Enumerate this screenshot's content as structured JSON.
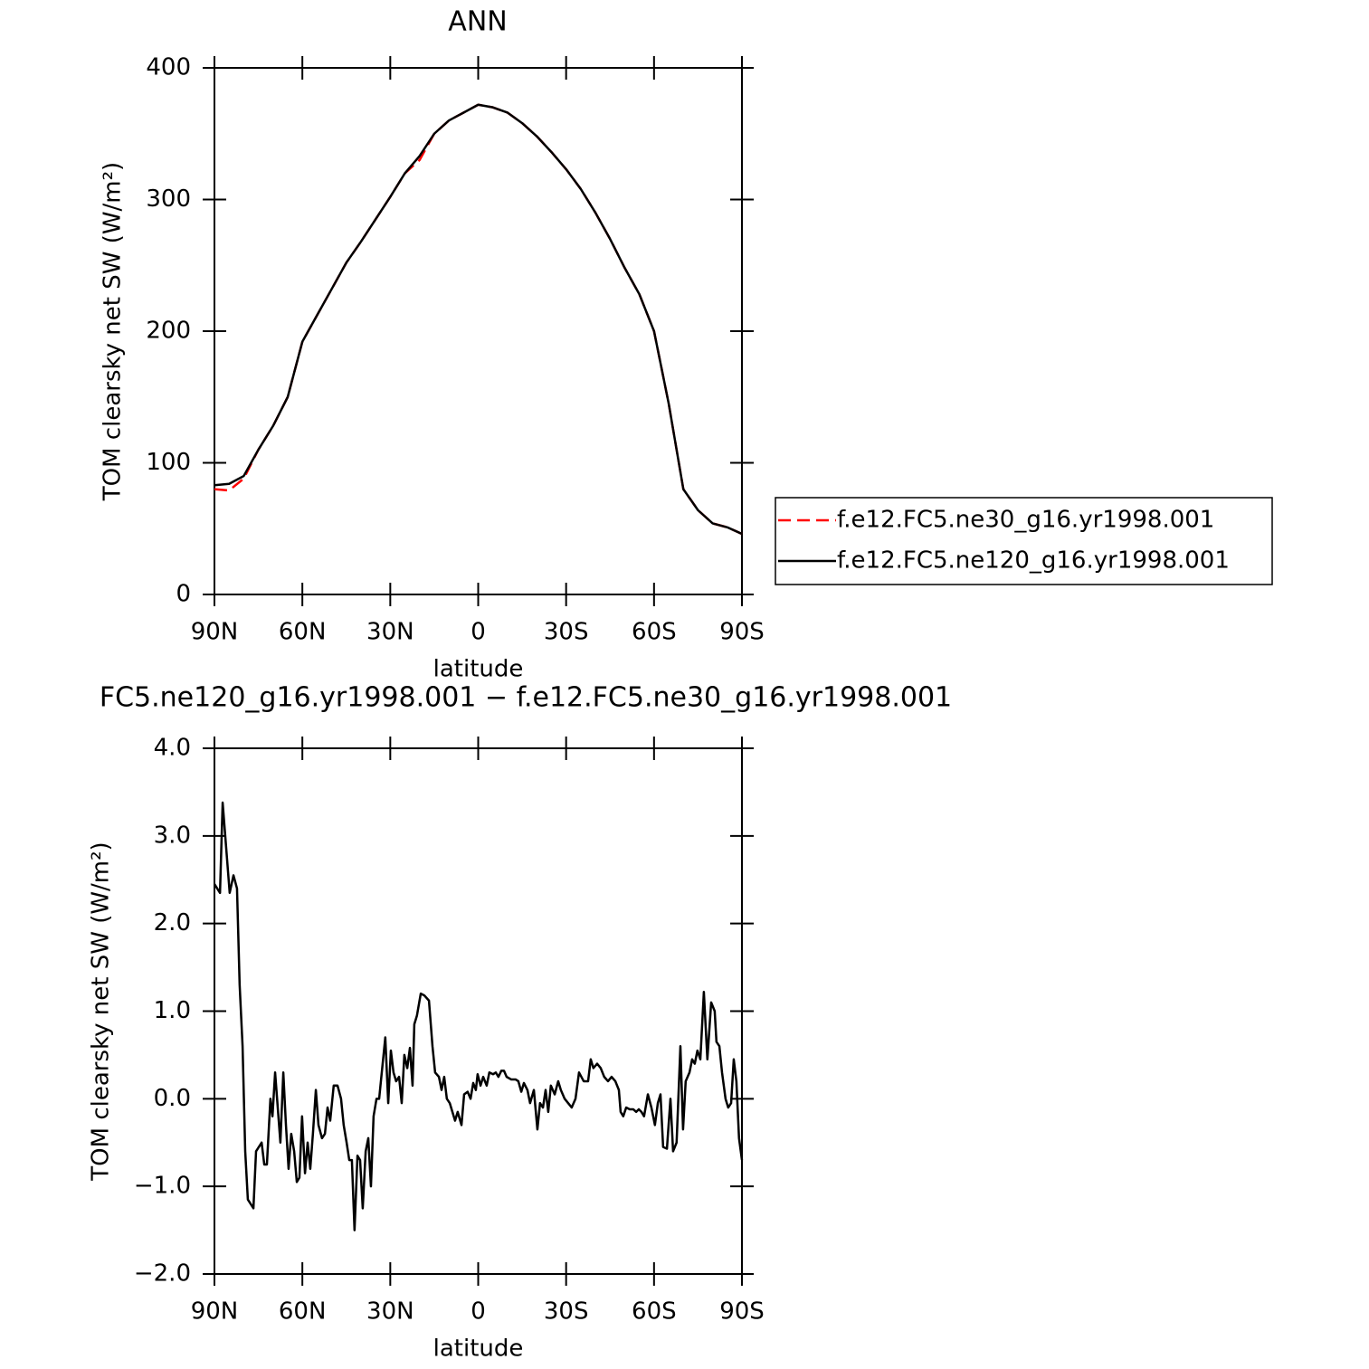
{
  "chart_data": [
    {
      "type": "line",
      "title": "ANN",
      "x_label": "latitude",
      "y_label": "TOM clearsky net SW (W/m²)",
      "x": [
        90,
        85,
        80,
        75,
        70,
        65,
        60,
        55,
        50,
        45,
        40,
        35,
        30,
        25,
        20,
        15,
        10,
        5,
        0,
        -5,
        -10,
        -15,
        -20,
        -25,
        -30,
        -35,
        -40,
        -45,
        -50,
        -55,
        -60,
        -65,
        -70,
        -75,
        -80,
        -85,
        -90
      ],
      "series": [
        {
          "name": "f.e12.FC5.ne30_g16.yr1998.001",
          "color": "#ff0000",
          "dash": "dashed",
          "values": [
            80,
            79,
            88,
            110,
            128,
            150,
            192,
            212,
            232,
            252,
            268,
            285,
            302,
            320,
            330,
            350,
            360,
            366,
            372,
            370,
            366,
            358,
            348,
            336,
            323,
            308,
            290,
            270,
            248,
            228,
            200,
            145,
            80,
            64,
            54,
            51,
            46
          ]
        },
        {
          "name": "f.e12.FC5.ne120_g16.yr1998.001",
          "color": "#000000",
          "dash": "solid",
          "values": [
            83,
            84,
            90,
            110,
            128,
            150,
            192,
            212,
            232,
            252,
            268,
            285,
            302,
            320,
            333,
            350,
            360,
            366,
            372,
            370,
            366,
            358,
            348,
            336,
            323,
            308,
            290,
            270,
            248,
            228,
            200,
            145,
            80,
            64,
            54,
            51,
            46
          ]
        }
      ],
      "xlim": [
        90,
        -90
      ],
      "xticks": [
        {
          "value": 90,
          "label": "90N"
        },
        {
          "value": 60,
          "label": "60N"
        },
        {
          "value": 30,
          "label": "30N"
        },
        0,
        {
          "value": -30,
          "label": "30S"
        },
        {
          "value": -60,
          "label": "60S"
        },
        {
          "value": -90,
          "label": "90S"
        }
      ],
      "ylim": [
        0,
        400
      ],
      "yticks": [
        0,
        100,
        200,
        300,
        400
      ],
      "legend": "right"
    },
    {
      "type": "line",
      "title": "FC5.ne120_g16.yr1998.001 − f.e12.FC5.ne30_g16.yr1998.001",
      "x_label": "latitude",
      "y_label": "TOM clearsky net SW (W/m²)",
      "x": [
        90.0,
        88.1,
        87.2,
        84.8,
        83.5,
        82.3,
        81.4,
        80.4,
        79.5,
        78.6,
        76.7,
        75.8,
        73.9,
        73.0,
        72.1,
        70.9,
        70.2,
        69.3,
        67.5,
        66.5,
        65.6,
        64.7,
        63.8,
        62.8,
        61.9,
        61.0,
        60.1,
        59.1,
        58.2,
        57.3,
        56.4,
        55.4,
        54.5,
        53.3,
        52.3,
        51.4,
        50.5,
        49.3,
        48.0,
        46.8,
        45.9,
        44.9,
        44.0,
        43.1,
        42.2,
        41.2,
        40.3,
        39.4,
        38.4,
        37.5,
        36.6,
        35.7,
        34.7,
        33.8,
        32.9,
        31.7,
        30.7,
        29.8,
        28.9,
        28.0,
        27.0,
        26.1,
        25.2,
        24.2,
        23.3,
        22.4,
        21.8,
        20.9,
        19.6,
        18.4,
        16.8,
        15.6,
        14.7,
        13.4,
        12.5,
        11.6,
        10.7,
        9.7,
        8.8,
        7.9,
        7.0,
        5.7,
        4.8,
        3.6,
        2.6,
        1.7,
        0.8,
        0.2,
        -0.8,
        -1.7,
        -2.9,
        -3.8,
        -5.1,
        -6.0,
        -6.9,
        -7.9,
        -8.8,
        -9.7,
        -11.3,
        -12.8,
        -13.7,
        -14.7,
        -15.6,
        -16.8,
        -17.7,
        -19.0,
        -20.2,
        -21.1,
        -22.1,
        -23.0,
        -23.9,
        -24.8,
        -26.1,
        -27.3,
        -28.2,
        -29.5,
        -30.7,
        -31.9,
        -33.2,
        -34.4,
        -36.0,
        -37.5,
        -38.4,
        -39.3,
        -40.6,
        -41.8,
        -43.0,
        -44.3,
        -45.5,
        -46.8,
        -48.0,
        -48.6,
        -49.5,
        -50.5,
        -51.7,
        -52.9,
        -53.9,
        -54.8,
        -55.7,
        -56.6,
        -57.9,
        -59.1,
        -60.3,
        -61.3,
        -62.2,
        -63.1,
        -64.4,
        -65.6,
        -66.5,
        -67.7,
        -69.0,
        -69.9,
        -70.8,
        -72.1,
        -73.0,
        -73.9,
        -74.8,
        -75.8,
        -77.0,
        -78.2,
        -79.5,
        -80.7,
        -81.3,
        -82.3,
        -83.2,
        -84.4,
        -85.3,
        -86.3,
        -87.2,
        -88.1,
        -89.0,
        -90.0
      ],
      "series": [
        {
          "color": "#000000",
          "dash": "solid",
          "values": [
            2.45,
            2.35,
            3.38,
            2.35,
            2.55,
            2.4,
            1.3,
            0.6,
            -0.6,
            -1.15,
            -1.25,
            -0.6,
            -0.5,
            -0.75,
            -0.75,
            0.0,
            -0.2,
            0.3,
            -0.5,
            0.3,
            -0.3,
            -0.8,
            -0.4,
            -0.6,
            -0.95,
            -0.9,
            -0.2,
            -0.85,
            -0.5,
            -0.8,
            -0.4,
            0.1,
            -0.3,
            -0.45,
            -0.4,
            -0.1,
            -0.25,
            0.15,
            0.15,
            0.0,
            -0.3,
            -0.5,
            -0.7,
            -0.7,
            -1.5,
            -0.65,
            -0.7,
            -1.25,
            -0.6,
            -0.45,
            -1.0,
            -0.2,
            0.0,
            0.0,
            0.3,
            0.7,
            -0.05,
            0.55,
            0.3,
            0.2,
            0.25,
            -0.05,
            0.5,
            0.35,
            0.58,
            0.15,
            0.85,
            0.95,
            1.2,
            1.18,
            1.12,
            0.6,
            0.3,
            0.25,
            0.1,
            0.25,
            0.0,
            -0.05,
            -0.15,
            -0.25,
            -0.15,
            -0.3,
            0.05,
            0.08,
            0.0,
            0.18,
            0.1,
            0.28,
            0.15,
            0.25,
            0.15,
            0.3,
            0.28,
            0.3,
            0.25,
            0.32,
            0.32,
            0.25,
            0.22,
            0.22,
            0.2,
            0.08,
            0.18,
            0.1,
            -0.05,
            0.1,
            -0.35,
            -0.05,
            -0.1,
            0.1,
            -0.15,
            0.15,
            0.05,
            0.2,
            0.1,
            0.0,
            -0.05,
            -0.1,
            0.0,
            0.3,
            0.2,
            0.2,
            0.45,
            0.35,
            0.4,
            0.35,
            0.25,
            0.2,
            0.25,
            0.2,
            0.1,
            -0.15,
            -0.2,
            -0.1,
            -0.12,
            -0.12,
            -0.15,
            -0.12,
            -0.15,
            -0.2,
            0.05,
            -0.1,
            -0.3,
            -0.05,
            0.05,
            -0.55,
            -0.57,
            0.0,
            -0.6,
            -0.5,
            0.6,
            -0.35,
            0.2,
            0.3,
            0.45,
            0.4,
            0.55,
            0.45,
            1.22,
            0.45,
            1.1,
            1.0,
            0.65,
            0.6,
            0.3,
            0.0,
            -0.1,
            -0.05,
            0.45,
            0.2,
            -0.45,
            -0.7
          ]
        }
      ],
      "xlim": [
        90,
        -90
      ],
      "xticks": [
        {
          "value": 90,
          "label": "90N"
        },
        {
          "value": 60,
          "label": "60N"
        },
        {
          "value": 30,
          "label": "30N"
        },
        0,
        {
          "value": -30,
          "label": "30S"
        },
        {
          "value": -60,
          "label": "60S"
        },
        {
          "value": -90,
          "label": "90S"
        }
      ],
      "ylim": [
        -2,
        4
      ],
      "yticks": [
        {
          "value": -2,
          "label": "−2.0"
        },
        {
          "value": -1,
          "label": "−1.0"
        },
        {
          "value": 0,
          "label": "0.0"
        },
        {
          "value": 1,
          "label": "1.0"
        },
        {
          "value": 2,
          "label": "2.0"
        },
        {
          "value": 3,
          "label": "3.0"
        },
        {
          "value": 4,
          "label": "4.0"
        }
      ]
    }
  ]
}
